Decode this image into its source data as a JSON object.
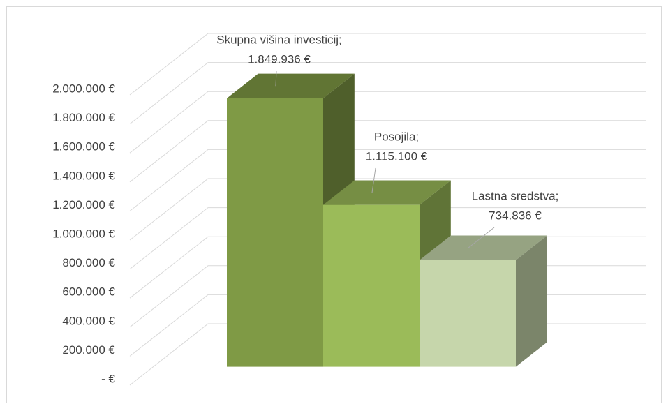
{
  "chart_data": {
    "type": "bar3d",
    "categories": [
      "Skupna višina investicij;",
      "Posojila;",
      "Lastna sredstva;"
    ],
    "values": [
      1849936,
      1115100,
      734836
    ],
    "value_labels": [
      "1.849.936 €",
      "1.115.100 €",
      "734.836 €"
    ],
    "colors": [
      "#7f9a45",
      "#9bbb59",
      "#c6d6ab"
    ],
    "ylim": [
      0,
      2000000
    ],
    "yticks": [
      {
        "value": 0,
        "label": "- €"
      },
      {
        "value": 200000,
        "label": "200.000 €"
      },
      {
        "value": 400000,
        "label": "400.000 €"
      },
      {
        "value": 600000,
        "label": "600.000 €"
      },
      {
        "value": 800000,
        "label": "800.000 €"
      },
      {
        "value": 1000000,
        "label": "1.000.000 €"
      },
      {
        "value": 1200000,
        "label": "1.200.000 €"
      },
      {
        "value": 1400000,
        "label": "1.400.000 €"
      },
      {
        "value": 1600000,
        "label": "1.600.000 €"
      },
      {
        "value": 1800000,
        "label": "1.800.000 €"
      },
      {
        "value": 2000000,
        "label": "2.000.000 €"
      }
    ],
    "grid": true
  }
}
